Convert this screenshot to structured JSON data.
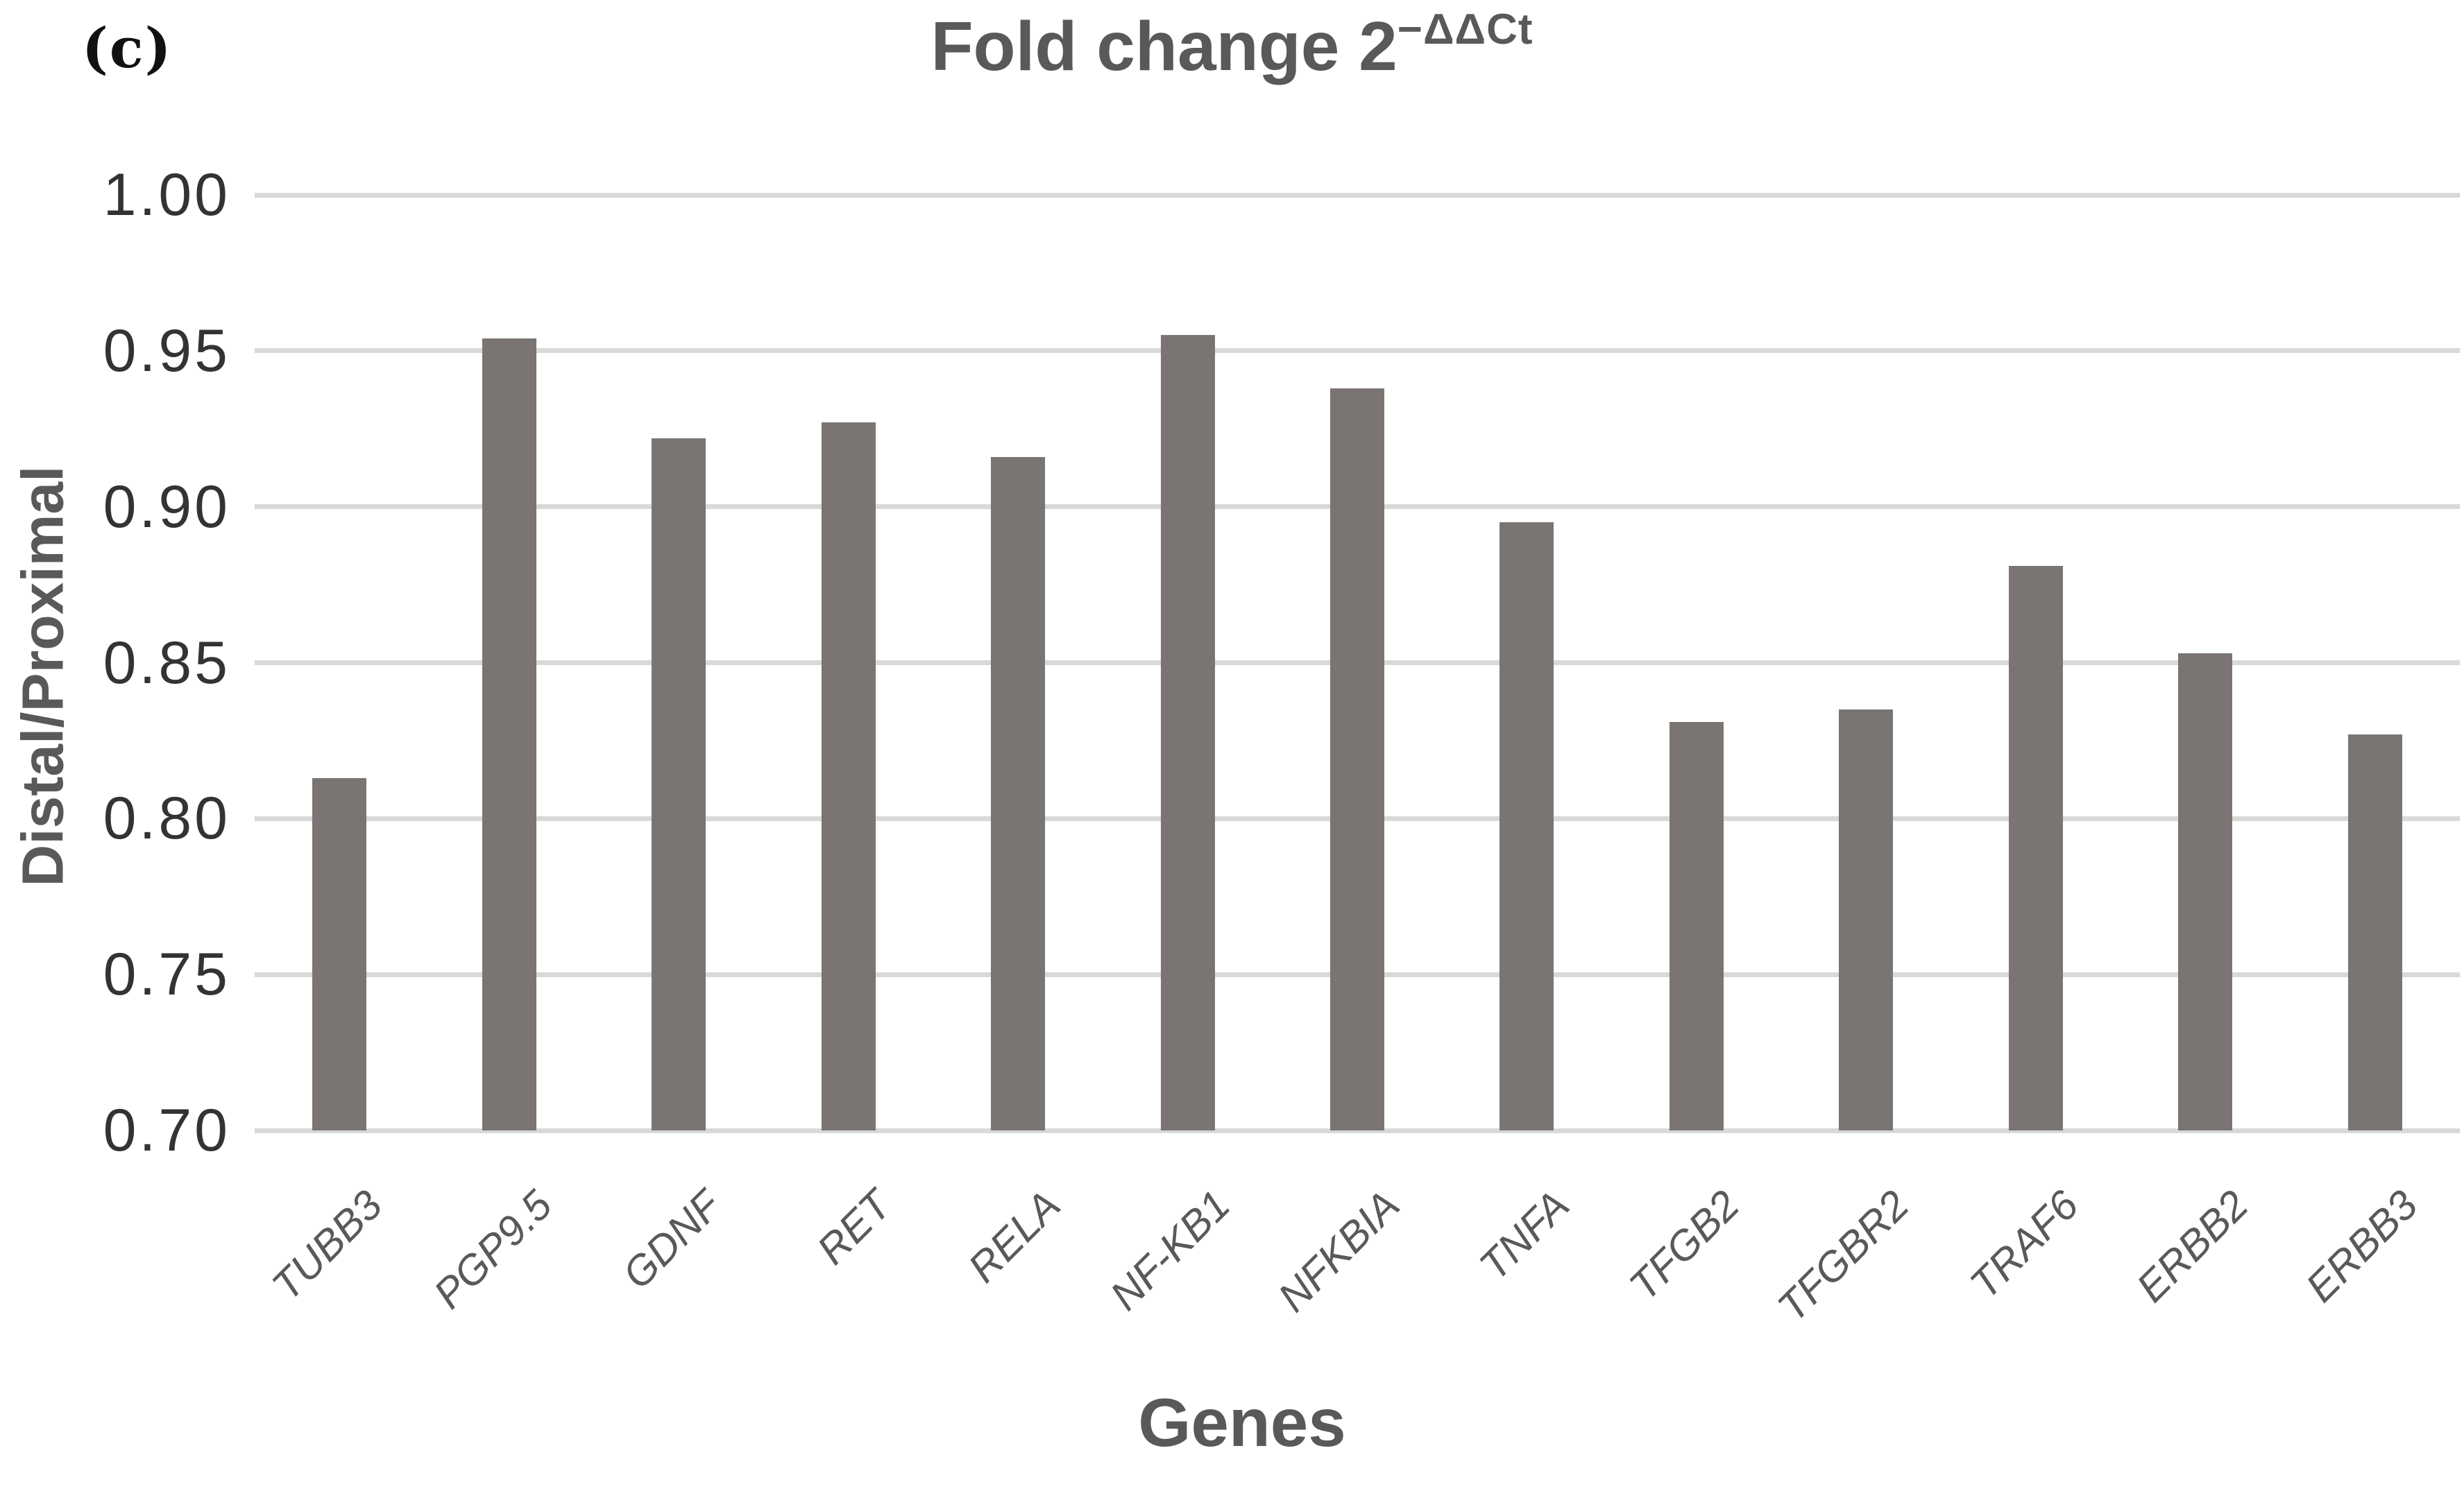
{
  "figure_label": "(c)",
  "chart_data": {
    "type": "bar",
    "title": "Fold change 2−ΔΔCt",
    "title_base": "Fold change 2",
    "title_superscript": "−ΔΔCt",
    "xlabel": "Genes",
    "ylabel": "Distal/Proximal",
    "categories": [
      "TUBB3",
      "PGP9.5",
      "GDNF",
      "RET",
      "RELA",
      "NF-KB1",
      "NFKBIA",
      "TNFA",
      "TFGB2",
      "TFGBR2",
      "TRAF6",
      "ERBB2",
      "ERBB3"
    ],
    "values": [
      0.813,
      0.954,
      0.922,
      0.927,
      0.916,
      0.955,
      0.938,
      0.895,
      0.831,
      0.835,
      0.881,
      0.853,
      0.827
    ],
    "ylim": [
      0.7,
      1.0
    ],
    "ytick_step": 0.05,
    "ytick_labels": [
      "1.00",
      "0.95",
      "0.90",
      "0.85",
      "0.80",
      "0.75",
      "0.70"
    ],
    "grid": "horizontal",
    "legend": "none",
    "bar_color": "#7a7572",
    "gridline_color": "#d9d9d9",
    "axis_text_color": "#595959",
    "tick_text_color": "#333333"
  }
}
